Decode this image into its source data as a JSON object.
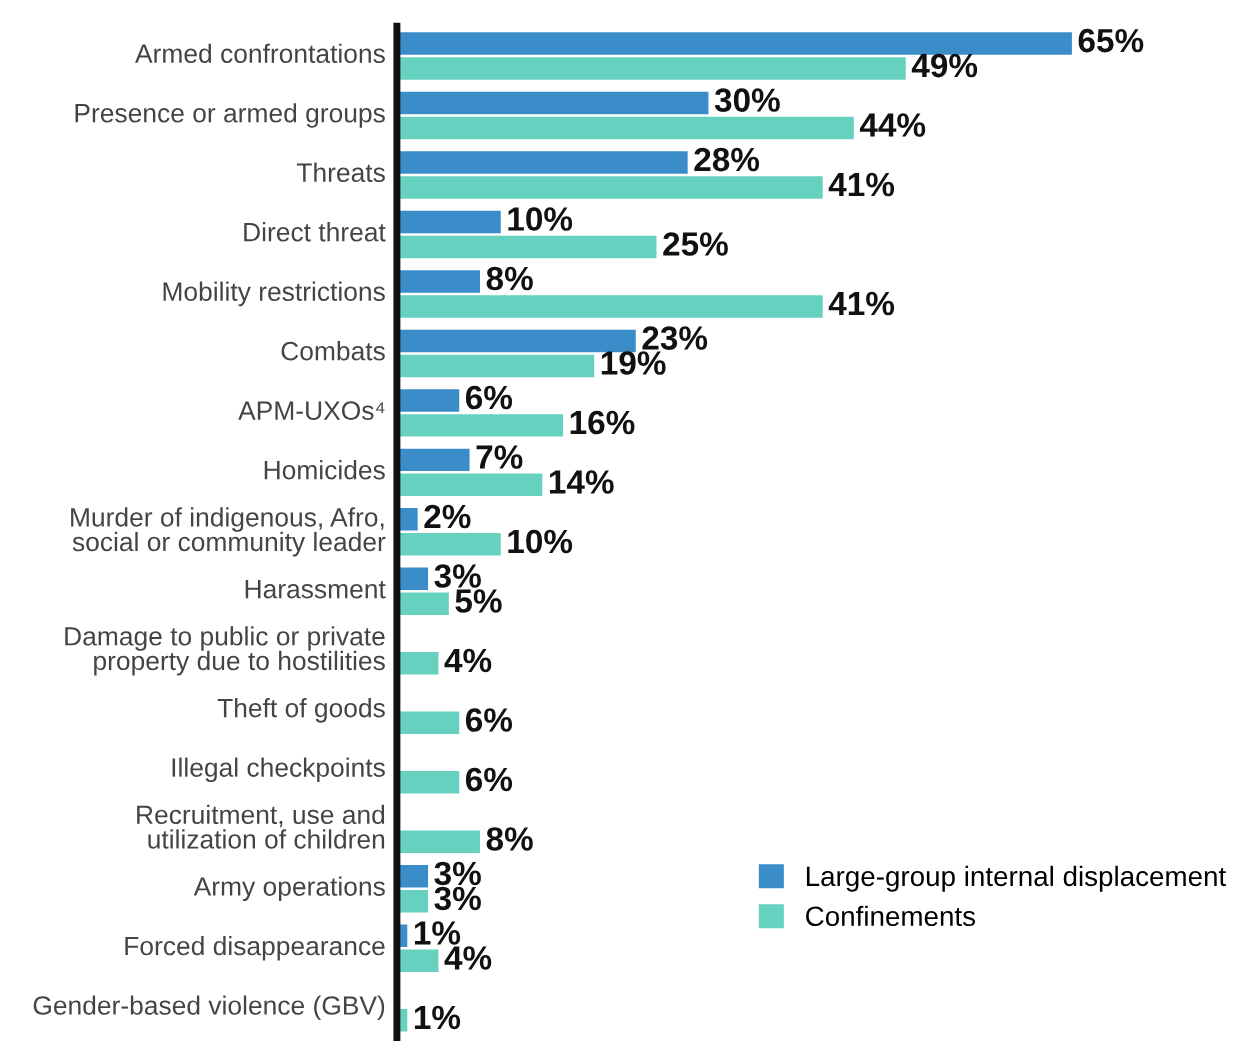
{
  "chart_data": {
    "type": "bar",
    "orientation": "horizontal",
    "legend": "bottom right",
    "grid": false,
    "categories": [
      "Armed confrontations",
      "Presence or armed groups",
      "Threats",
      "Direct threat",
      "Mobility restrictions",
      "Combats",
      "APM-UXOs⁴",
      "Homicides",
      "Murder of indigenous, Afro,\nsocial or community leader",
      "Harassment",
      "Damage to public or private\nproperty due to hostilities",
      "Theft of goods",
      "Illegal checkpoints",
      "Recruitment, use and\nutilization of children",
      "Army operations",
      "Forced disappearance",
      "Gender-based violence (GBV)"
    ],
    "series": [
      {
        "name": "Large-group internal displacement",
        "color": "#3a8dc9",
        "values": [
          65,
          30,
          28,
          10,
          8,
          23,
          6,
          7,
          2,
          3,
          null,
          null,
          null,
          null,
          3,
          1,
          null
        ],
        "value_labels": [
          "65%",
          "30%",
          "28%",
          "10%",
          "8%",
          "23%",
          "6%",
          "7%",
          "2%",
          "3%",
          null,
          null,
          null,
          null,
          "3%",
          "1%",
          null
        ]
      },
      {
        "name": "Confinements",
        "color": "#66d1bf",
        "values": [
          49,
          44,
          41,
          25,
          41,
          19,
          16,
          14,
          10,
          5,
          4,
          6,
          6,
          8,
          3,
          4,
          1
        ],
        "value_labels": [
          "49%",
          "44%",
          "41%",
          "25%",
          "41%",
          "19%",
          "16%",
          "14%",
          "10%",
          "5%",
          "4%",
          "6%",
          "6%",
          "8%",
          "3%",
          "4%",
          "1%"
        ]
      }
    ]
  }
}
